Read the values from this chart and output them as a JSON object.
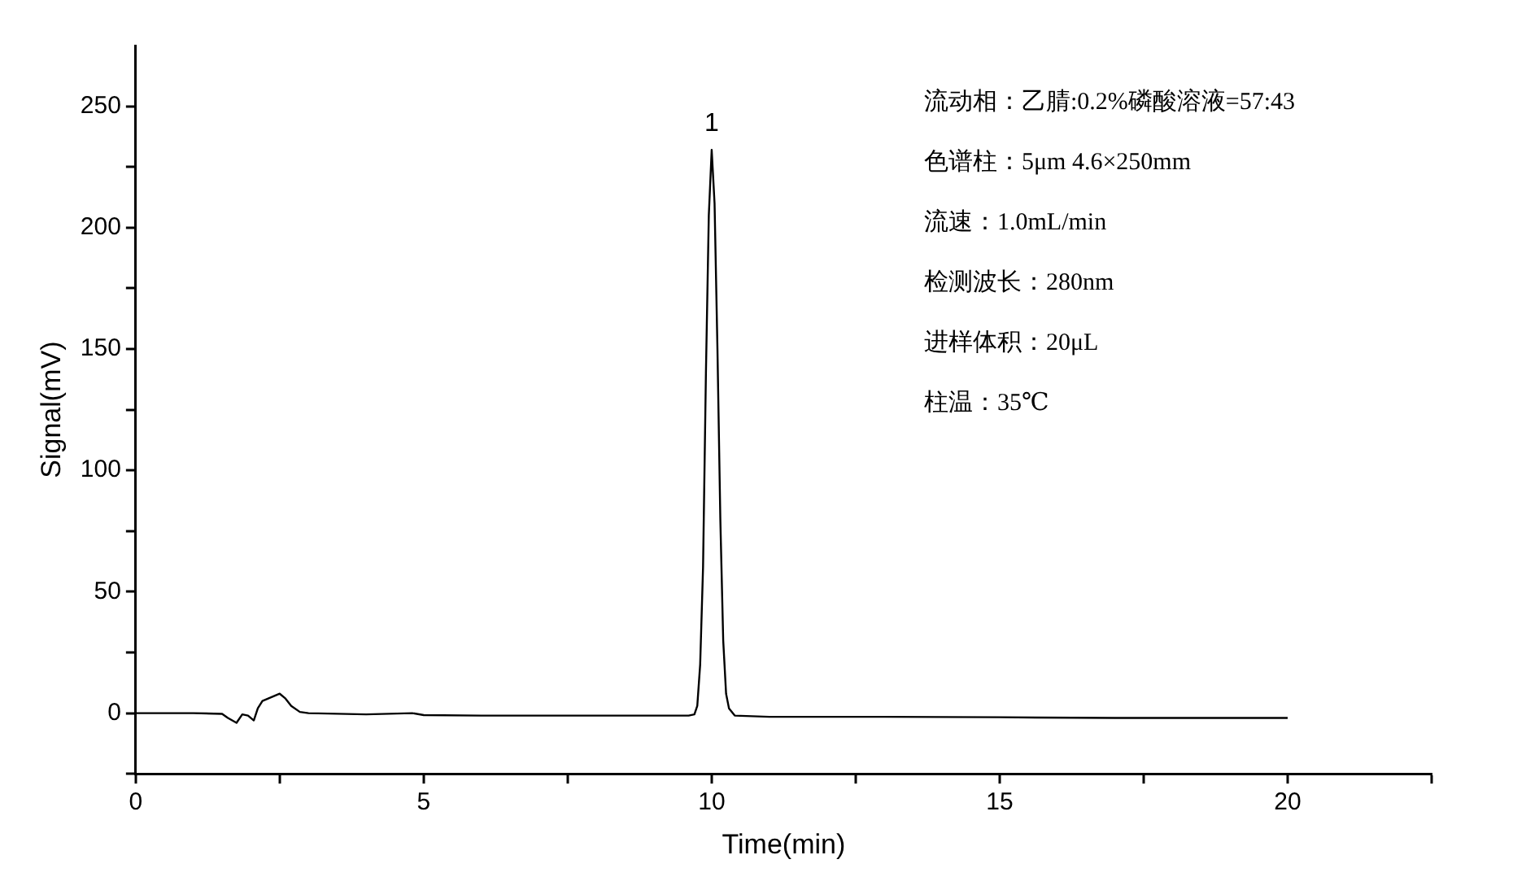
{
  "chart_data": {
    "type": "line",
    "xlabel": "Time(min)",
    "ylabel": "Signal(mV)",
    "xlim": [
      0,
      22.5
    ],
    "xticks": [
      0,
      {
        "value": 2.5,
        "label": null
      },
      5,
      {
        "value": 7.5,
        "label": null
      },
      10,
      {
        "value": 12.5,
        "label": null
      },
      15,
      {
        "value": 17.5,
        "label": null
      },
      20,
      {
        "value": 22.5,
        "label": null
      }
    ],
    "ylim": [
      -25,
      275
    ],
    "yticks": [
      {
        "value": -25,
        "label": null
      },
      0,
      {
        "value": 25,
        "label": null
      },
      50,
      {
        "value": 75,
        "label": null
      },
      100,
      {
        "value": 125,
        "label": null
      },
      150,
      {
        "value": 175,
        "label": null
      },
      200,
      {
        "value": 225,
        "label": null
      },
      250
    ],
    "grid": false,
    "legend": false,
    "marker": "none",
    "line_style": "solid",
    "series": [
      {
        "color": "#000000",
        "x": [
          0,
          1,
          1.5,
          1.6,
          1.75,
          1.85,
          1.95,
          2.05,
          2.12,
          2.2,
          2.3,
          2.4,
          2.5,
          2.6,
          2.7,
          2.85,
          3.0,
          4,
          4.8,
          5,
          6,
          8,
          9.6,
          9.7,
          9.75,
          9.8,
          9.85,
          9.9,
          9.95,
          10.0,
          10.05,
          10.1,
          10.15,
          10.2,
          10.25,
          10.3,
          10.4,
          11,
          13,
          15,
          17,
          18,
          20
        ],
        "values": [
          0,
          0,
          -0.3,
          -2,
          -4,
          -0.5,
          -1,
          -3,
          2,
          5,
          6,
          7,
          8,
          6,
          3,
          0.5,
          0,
          -0.5,
          0,
          -0.8,
          -1,
          -1,
          -1,
          -0.5,
          3,
          20,
          60,
          140,
          205,
          232,
          210,
          150,
          80,
          30,
          8,
          2,
          -1,
          -1.5,
          -1.5,
          -1.7,
          -2,
          -2,
          -2
        ]
      }
    ],
    "annotations": [
      {
        "text": "1",
        "x": 10,
        "y": 232
      },
      "流动相：乙腈:0.2%磷酸溶液=57:43",
      "色谱柱：5μm 4.6×250mm",
      "流速：1.0mL/min",
      "检测波长：280nm",
      "进样体积：20μL",
      "柱温：35℃"
    ]
  }
}
